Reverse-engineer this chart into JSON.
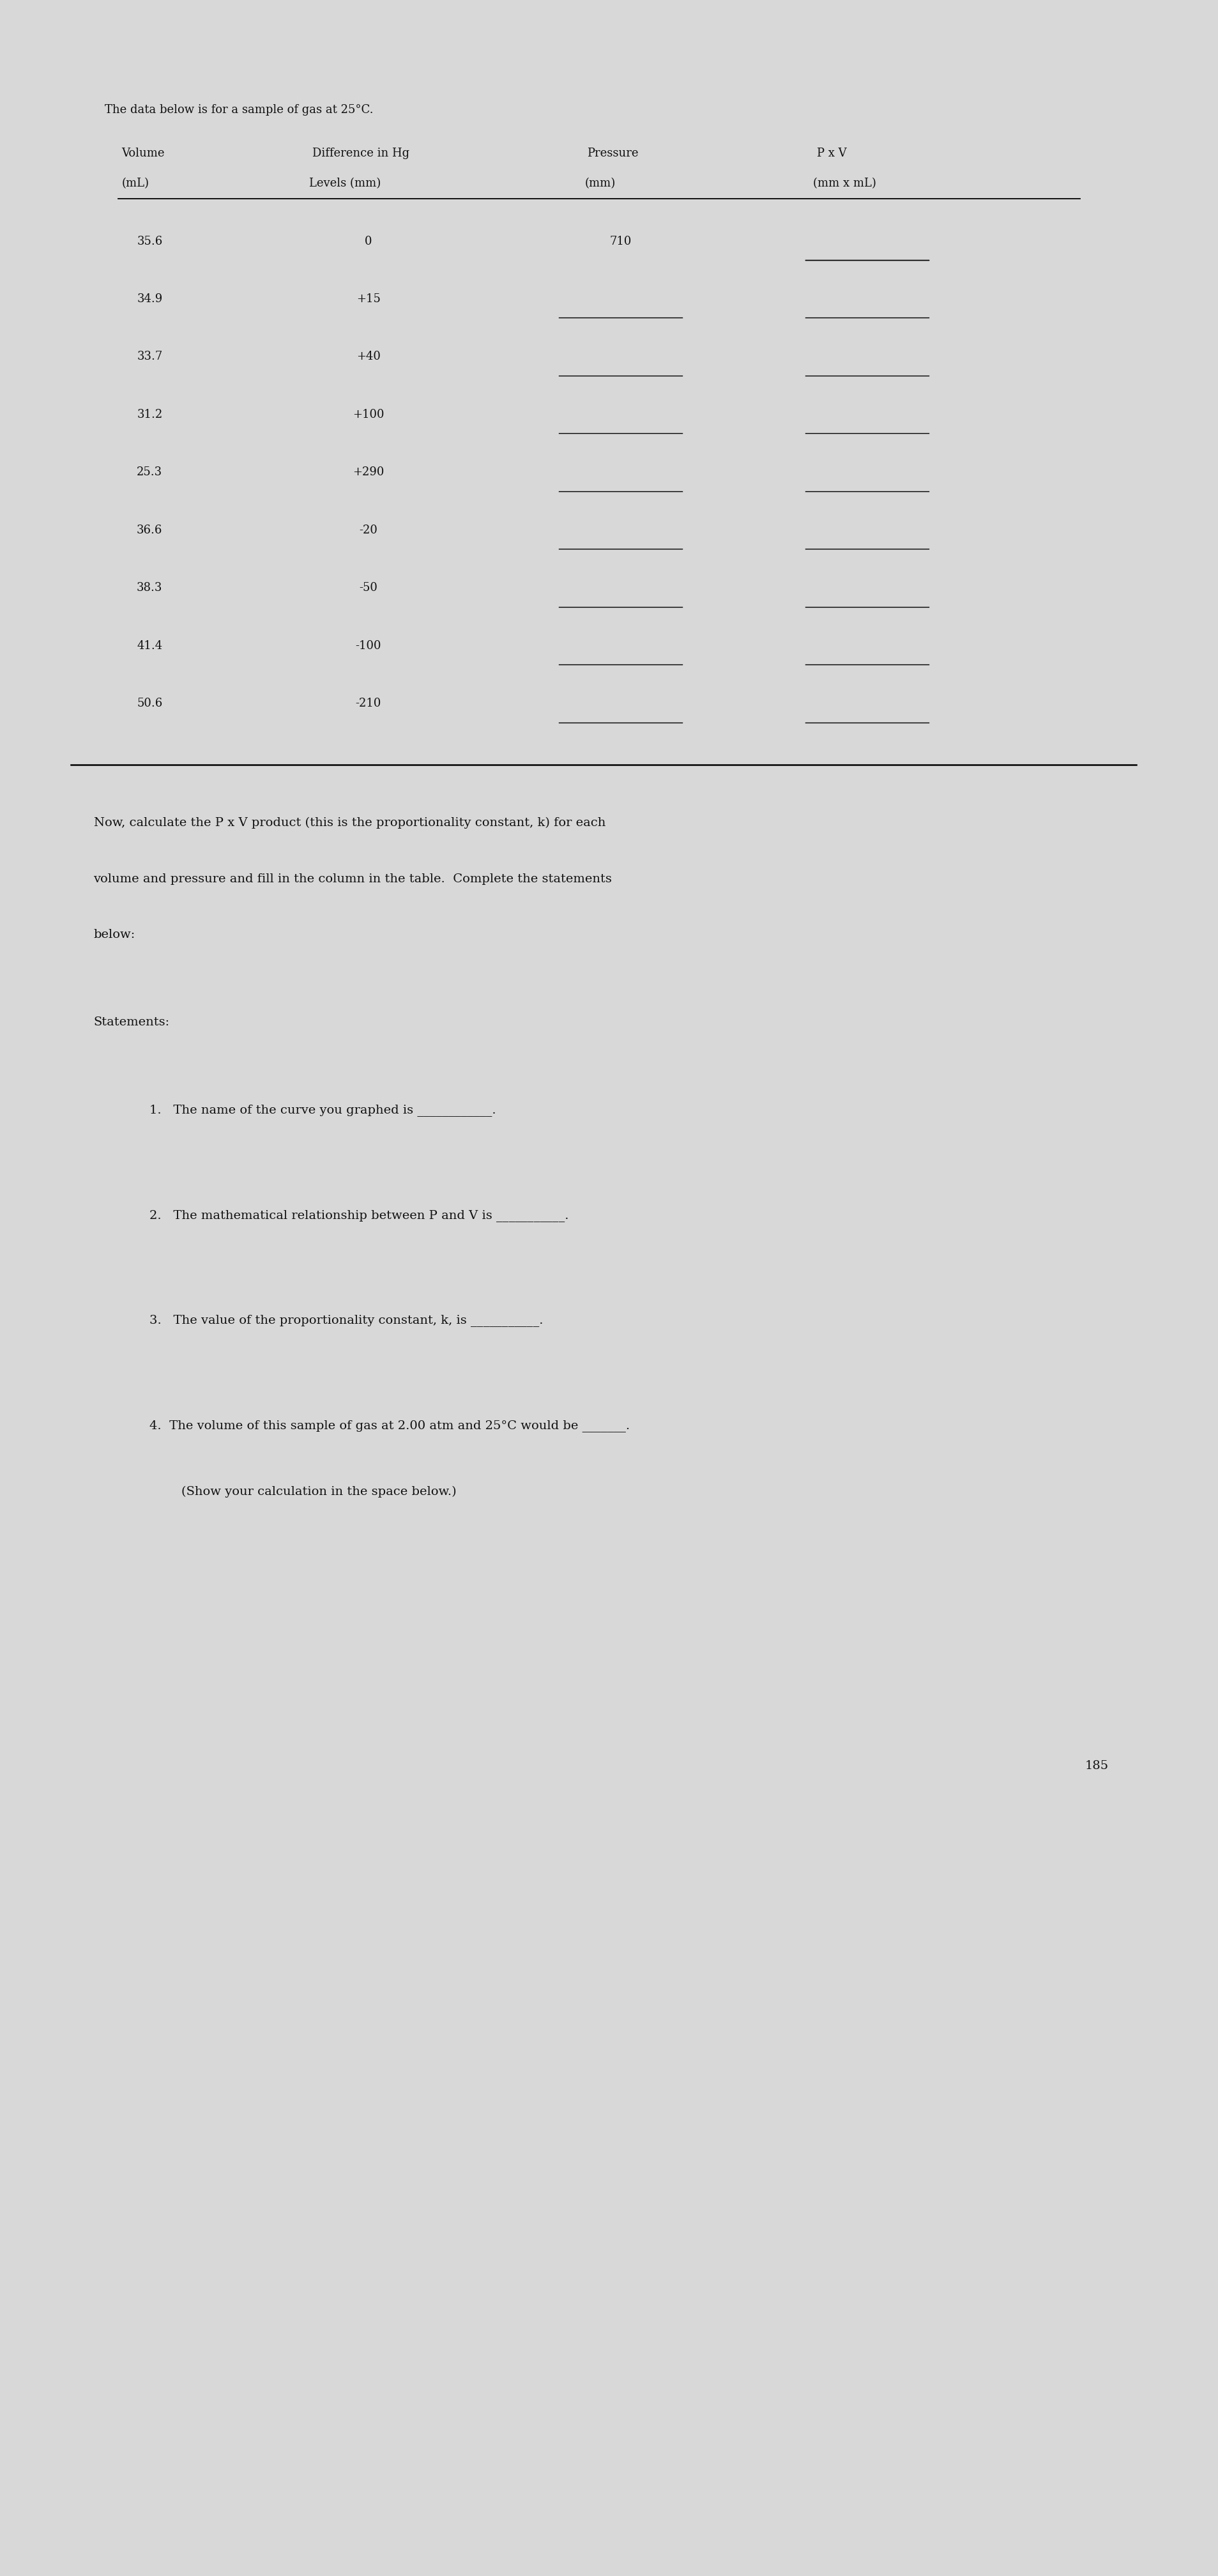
{
  "title": "The data below is for a sample of gas at 25°C.",
  "col_headers": [
    "Volume",
    "Difference in Hg",
    "Pressure",
    "P x V"
  ],
  "col_subheaders": [
    "(mL)",
    "Levels (mm)",
    "(mm)",
    "(mm x mL)"
  ],
  "rows": [
    {
      "volume": "35.6",
      "diff": "0",
      "pressure": "710",
      "pxv": ""
    },
    {
      "volume": "34.9",
      "diff": "+15",
      "pressure": "",
      "pxv": ""
    },
    {
      "volume": "33.7",
      "diff": "+40",
      "pressure": "",
      "pxv": ""
    },
    {
      "volume": "31.2",
      "diff": "+100",
      "pressure": "",
      "pxv": ""
    },
    {
      "volume": "25.3",
      "diff": "+290",
      "pressure": "",
      "pxv": ""
    },
    {
      "volume": "36.6",
      "diff": "-20",
      "pressure": "",
      "pxv": ""
    },
    {
      "volume": "38.3",
      "diff": "-50",
      "pressure": "",
      "pxv": ""
    },
    {
      "volume": "41.4",
      "diff": "-100",
      "pressure": "",
      "pxv": ""
    },
    {
      "volume": "50.6",
      "diff": "-210",
      "pressure": "",
      "pxv": ""
    }
  ],
  "paragraph_lines": [
    "Now, calculate the P x V product (this is the proportionality constant, k) for each",
    "volume and pressure and fill in the column in the table.  Complete the statements",
    "below:"
  ],
  "statements_header": "Statements:",
  "statements": [
    "1.   The name of the curve you graphed is ____________.",
    "2.   The mathematical relationship between P and V is ___________.",
    "3.   The value of the proportionality constant, k, is ___________.",
    "4.  The volume of this sample of gas at 2.00 atm and 25°C would be _______.",
    "        (Show your calculation in the space below.)"
  ],
  "page_number": "185",
  "bg_color": "#d8d8d8",
  "paper_color": "#f5f5f5",
  "text_color": "#111111",
  "font_size_body": 14,
  "font_size_title": 13,
  "font_size_table": 13,
  "font_size_page": 14
}
